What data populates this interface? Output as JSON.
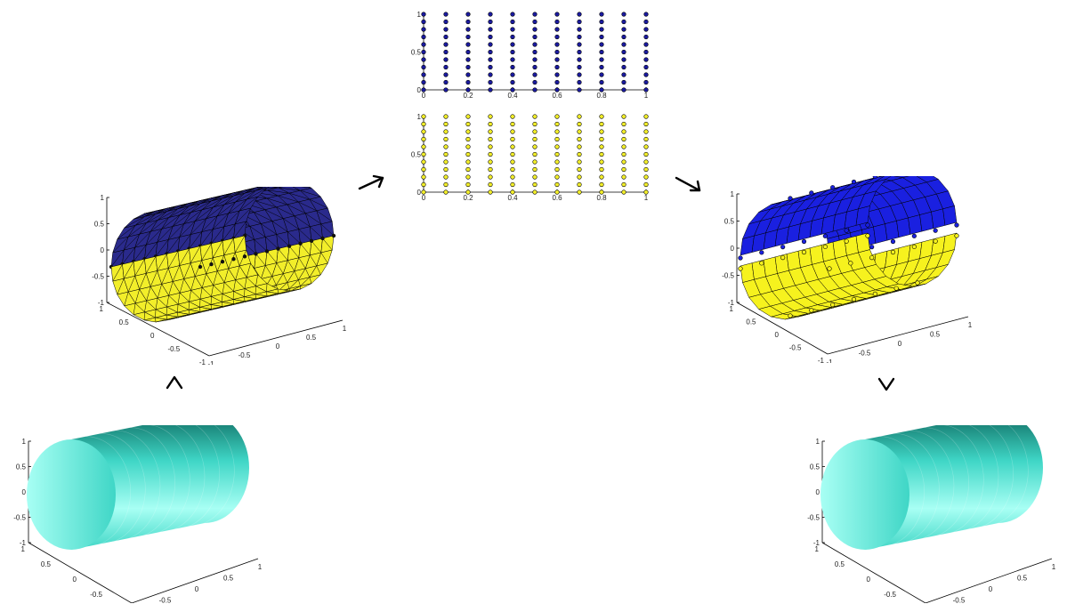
{
  "colors": {
    "upper_patch": "#2a2a8c",
    "lower_patch": "#f2ee2a",
    "upper_spline": "#1a20e0",
    "lower_spline": "#f6f21e",
    "surface": "#3fd6c6",
    "surface_light": "#a8fff4",
    "surface_dark": "#0f6b61"
  },
  "cylinder_axes": {
    "z_ticks": [
      "1",
      "0.5",
      "0",
      "-0.5",
      "-1"
    ],
    "x_ticks": [
      "1",
      "0.5",
      "0",
      "-0.5",
      "-1"
    ],
    "y_ticks": [
      "1",
      "0.5",
      "0",
      "-0.5",
      "-1"
    ]
  },
  "param_plots": {
    "x_ticks": [
      "0",
      "0.2",
      "0.4",
      "0.6",
      "0.8",
      "1"
    ],
    "y_ticks": [
      "1",
      "0.5",
      "0"
    ],
    "grid_cols": 11,
    "grid_rows": 11,
    "top": {
      "point_color": "#1a1a9e"
    },
    "bottom": {
      "point_color": "#f2ee2a"
    }
  },
  "flow": [
    {
      "name": "input-surface",
      "step": 1
    },
    {
      "name": "triangulated-split",
      "step": 2
    },
    {
      "name": "parameter-domain",
      "step": 3
    },
    {
      "name": "spline-fit",
      "step": 4
    },
    {
      "name": "output-surface",
      "step": 5
    }
  ]
}
